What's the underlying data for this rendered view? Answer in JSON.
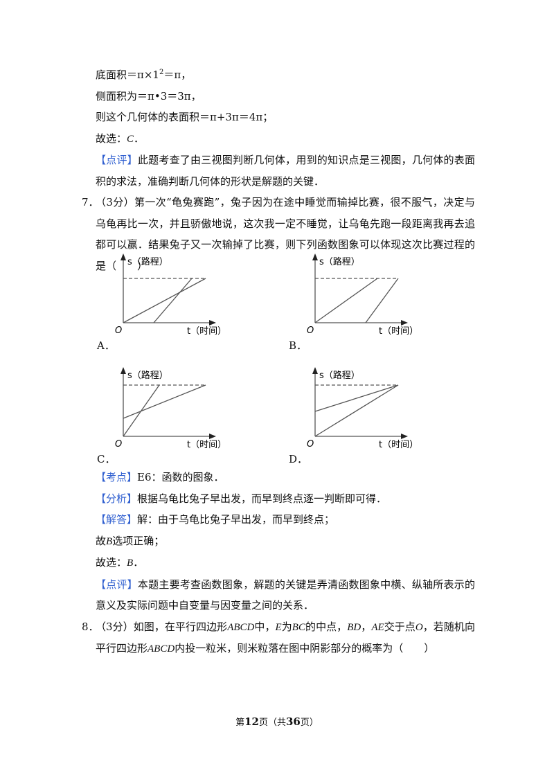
{
  "q6": {
    "area_base": [
      "底面积＝π×1",
      "2",
      "＝π，"
    ],
    "area_side": "侧面积为＝π•3＝3π，",
    "area_total": "则这个几何体的表面积＝π+3π＝4π；",
    "choice": [
      "故选：",
      "C",
      "．"
    ],
    "comment": {
      "tag": "【点评】",
      "text": "此题考查了由三视图判断几何体，用到的知识点是三视图，几何体的表面积的求法，准确判断几何体的形状是解题的关键．"
    }
  },
  "q7": {
    "number": "7．",
    "text": "（3分）第一次“龟兔赛跑”，兔子因为在途中睡觉而输掉比赛，很不服气，决定与乌龟再比一次，并且骄傲地说，这次我一定不睡觉，让乌龟先跑一段距离我再去追都可以赢．结果兔子又一次输掉了比赛，则下列函数图象可以体现这次比赛过程的是（　　）",
    "graphs": [
      {
        "option": "A．",
        "y_label": "s（路程）",
        "x_label": "t（时间）",
        "origin": "O"
      },
      {
        "option": "B．",
        "y_label": "s（路程）",
        "x_label": "t（时间）",
        "origin": "O"
      },
      {
        "option": "C．",
        "y_label": "s（路程）",
        "x_label": "t（时间）",
        "origin": "O"
      },
      {
        "option": "D．",
        "y_label": "s（路程）",
        "x_label": "t（时间）",
        "origin": "O"
      }
    ],
    "point": {
      "tag": "【考点】",
      "text": "E6：函数的图象．"
    },
    "analysis": {
      "tag": "【分析】",
      "text": "根据乌龟比兔子早出发，而早到终点逐一判断即可得．"
    },
    "answer": {
      "tag": "【解答】",
      "text": "解：由于乌龟比兔子早出发，而早到终点；"
    },
    "correct": [
      "故",
      "B",
      "选项正确；"
    ],
    "choice": [
      "故选：",
      "B",
      "．"
    ],
    "comment": {
      "tag": "【点评】",
      "text": "本题主要考查函数图象，解题的关键是弄清函数图象中横、纵轴所表示的意义及实际问题中自变量与因变量之间的关系．"
    }
  },
  "q8": {
    "number": "8．",
    "parts": [
      "（3分）如图，在平行四边形",
      "ABCD",
      "中，",
      "E",
      "为",
      "BC",
      "的中点，",
      "BD",
      "，",
      "AE",
      "交于点",
      "O",
      "，若随机向平行四边形",
      "ABCD",
      "内投一粒米，则米粒落在图中阴影部分的概率为（　　）"
    ]
  },
  "footer": [
    "第",
    "12",
    "页（共",
    "36",
    "页）"
  ]
}
